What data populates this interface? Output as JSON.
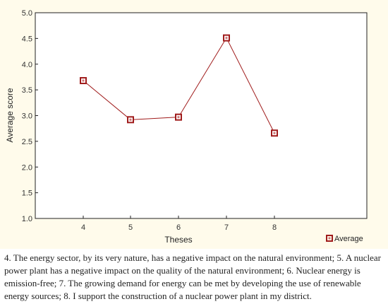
{
  "chart_data": {
    "type": "line",
    "xlabel": "Theses",
    "ylabel": "Average score",
    "ylim": [
      1.0,
      5.0
    ],
    "yticks": [
      "1.0",
      "1.5",
      "2.0",
      "2.5",
      "3.0",
      "3.5",
      "4.0",
      "4.5",
      "5.0"
    ],
    "categories": [
      "4",
      "5",
      "6",
      "7",
      "8"
    ],
    "series": [
      {
        "name": "Average",
        "values": [
          3.68,
          2.92,
          2.97,
          4.51,
          2.66
        ],
        "color": "#a01c1c"
      }
    ],
    "grid": false,
    "legend_position": "bottom-right"
  },
  "caption": "4. The energy sector, by its very nature, has a negative impact on the natural environment; 5. A nuclear power plant has a negative impact on the quality of the natural environment; 6. Nuclear energy is emission-free; 7. The growing demand for energy can be met by developing the use of renewable energy sources; 8. I support the construction of a nuclear power plant in my district."
}
